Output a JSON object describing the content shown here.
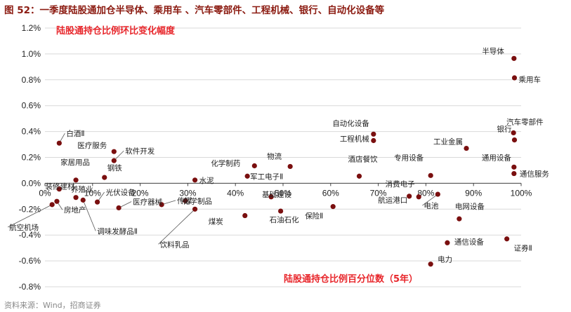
{
  "figure_title": "图 52：一季度陆股通加仓半导体、乘用车 、汽车零部件、工程机械、银行、自动化设备等",
  "source": "资料来源：Wind，招商证券",
  "colors": {
    "title": "#8b1a10",
    "marker": "#7a0f0f",
    "annotation": "#e8262b",
    "grid": "#d9d9d9"
  },
  "chart_data": {
    "type": "scatter",
    "title": "",
    "ylabel_text": "陆股通持仓比例环比变化幅度",
    "xlabel_text": "陆股通持仓比例百分位数（5年）",
    "xlim": [
      0,
      100
    ],
    "ylim": [
      -0.8,
      1.2
    ],
    "x_ticks": [
      0,
      10,
      20,
      30,
      40,
      50,
      60,
      70,
      80,
      90,
      100
    ],
    "x_tick_labels": [
      "0%",
      "10%",
      "20%",
      "30%",
      "40%",
      "50%",
      "60%",
      "70%",
      "80%",
      "90%",
      "100%"
    ],
    "y_ticks": [
      1.2,
      1.0,
      0.8,
      0.6,
      0.4,
      0.2,
      0.0,
      -0.2,
      -0.4,
      -0.6,
      -0.8
    ],
    "y_tick_labels": [
      "1.2%",
      "1.0%",
      "0.8%",
      "0.6%",
      "0.4%",
      "0.2%",
      "0.0%",
      "-0.2%",
      "-0.4%",
      "-0.6%",
      "-0.8%"
    ],
    "grid": "horizontal",
    "points": [
      {
        "label": "半导体",
        "x": 98.5,
        "y": 0.965
      },
      {
        "label": "乘用车",
        "x": 98.6,
        "y": 0.815
      },
      {
        "label": "白酒Ⅱ",
        "x": 3.0,
        "y": 0.31
      },
      {
        "label": "汽车零部件",
        "x": 98.4,
        "y": 0.39
      },
      {
        "label": "银行",
        "x": 98.6,
        "y": 0.335
      },
      {
        "label": "自动化设备",
        "x": 69.0,
        "y": 0.38
      },
      {
        "label": "工程机械",
        "x": 69.0,
        "y": 0.33
      },
      {
        "label": "工业金属",
        "x": 88.5,
        "y": 0.27
      },
      {
        "label": "医疗服务",
        "x": 14.5,
        "y": 0.245
      },
      {
        "label": "软件开发",
        "x": 14.5,
        "y": 0.175
      },
      {
        "label": "物流",
        "x": 51.5,
        "y": 0.13
      },
      {
        "label": "化学制药",
        "x": 44.0,
        "y": 0.135
      },
      {
        "label": "通用设备",
        "x": 98.5,
        "y": 0.125
      },
      {
        "label": "通信服务",
        "x": 98.5,
        "y": 0.075
      },
      {
        "label": "钢铁",
        "x": 12.5,
        "y": 0.045
      },
      {
        "label": "军工电子Ⅱ",
        "x": 42.5,
        "y": 0.055
      },
      {
        "label": "酒店餐饮",
        "x": 66.0,
        "y": 0.055
      },
      {
        "label": "专用设备",
        "x": 81.0,
        "y": 0.06
      },
      {
        "label": "家居用品",
        "x": 6.5,
        "y": 0.025
      },
      {
        "label": "水泥",
        "x": 31.5,
        "y": 0.025
      },
      {
        "label": "装修建材",
        "x": 3.0,
        "y": -0.045
      },
      {
        "label": "养殖业",
        "x": 6.5,
        "y": -0.11
      },
      {
        "label": "航空机场",
        "x": 1.5,
        "y": -0.165
      },
      {
        "label": "房地产",
        "x": 2.5,
        "y": -0.14
      },
      {
        "label": "光伏设备",
        "x": 11.0,
        "y": -0.145
      },
      {
        "label": "医疗器械",
        "x": 15.5,
        "y": -0.19
      },
      {
        "label": "调味发酵品Ⅱ",
        "x": 8.0,
        "y": -0.13
      },
      {
        "label": "传媒",
        "x": 24.5,
        "y": -0.165
      },
      {
        "label": "化学制品",
        "x": 29.5,
        "y": -0.135
      },
      {
        "label": "饮料乳品",
        "x": 31.5,
        "y": -0.2
      },
      {
        "label": "基础建设",
        "x": 47.5,
        "y": -0.105
      },
      {
        "label": "石油石化",
        "x": 49.5,
        "y": -0.215
      },
      {
        "label": "煤炭",
        "x": 42.0,
        "y": -0.25
      },
      {
        "label": "保险Ⅱ",
        "x": 60.5,
        "y": -0.18
      },
      {
        "label": "消费电子",
        "x": 76.5,
        "y": -0.1
      },
      {
        "label": "航运港口",
        "x": 78.5,
        "y": -0.105
      },
      {
        "label": "电池",
        "x": 82.5,
        "y": -0.085
      },
      {
        "label": "电网设备",
        "x": 87.0,
        "y": -0.275
      },
      {
        "label": "通信设备",
        "x": 84.5,
        "y": -0.46
      },
      {
        "label": "证券Ⅱ",
        "x": 97.0,
        "y": -0.43
      },
      {
        "label": "电力",
        "x": 81.0,
        "y": -0.625
      }
    ]
  }
}
